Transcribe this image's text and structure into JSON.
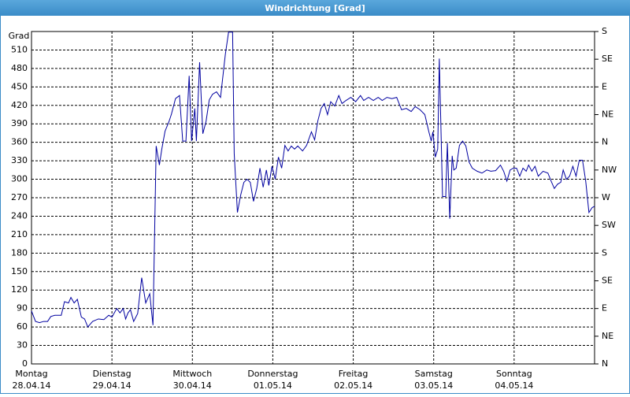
{
  "chart_data": {
    "type": "line",
    "title": "Windrichtung [Grad]",
    "y_label": "Grad",
    "color": "#0000a0",
    "grid": true,
    "xlim": [
      0,
      7
    ],
    "xticks": [
      {
        "value": 0,
        "label": "Montag",
        "date": "28.04.14"
      },
      {
        "value": 1,
        "label": "Dienstag",
        "date": "29.04.14"
      },
      {
        "value": 2,
        "label": "Mittwoch",
        "date": "30.04.14"
      },
      {
        "value": 3,
        "label": "Donnerstag",
        "date": "01.05.14"
      },
      {
        "value": 4,
        "label": "Freitag",
        "date": "02.05.14"
      },
      {
        "value": 5,
        "label": "Samstag",
        "date": "03.05.14"
      },
      {
        "value": 6,
        "label": "Sonntag",
        "date": "04.05.14"
      }
    ],
    "ylim": [
      0,
      540
    ],
    "yticks": [
      0,
      30,
      60,
      90,
      120,
      150,
      180,
      210,
      240,
      270,
      300,
      330,
      360,
      390,
      420,
      450,
      480,
      510
    ],
    "y2lim": [
      0,
      540
    ],
    "y2ticks": [
      {
        "value": 0,
        "label": "N"
      },
      {
        "value": 45,
        "label": "NE"
      },
      {
        "value": 90,
        "label": "E"
      },
      {
        "value": 135,
        "label": "SE"
      },
      {
        "value": 180,
        "label": "S"
      },
      {
        "value": 225,
        "label": "SW"
      },
      {
        "value": 270,
        "label": "W"
      },
      {
        "value": 315,
        "label": "NW"
      },
      {
        "value": 360,
        "label": "N"
      },
      {
        "value": 405,
        "label": "NE"
      },
      {
        "value": 450,
        "label": "E"
      },
      {
        "value": 495,
        "label": "SE"
      },
      {
        "value": 540,
        "label": "S"
      }
    ],
    "x": [
      0,
      0.05,
      0.1,
      0.15,
      0.2,
      0.24,
      0.29,
      0.37,
      0.41,
      0.46,
      0.49,
      0.53,
      0.57,
      0.62,
      0.66,
      0.7,
      0.76,
      0.83,
      0.9,
      0.96,
      1.0,
      1.06,
      1.1,
      1.14,
      1.17,
      1.2,
      1.23,
      1.27,
      1.32,
      1.37,
      1.42,
      1.47,
      1.51,
      1.55,
      1.59,
      1.62,
      1.66,
      1.71,
      1.74,
      1.79,
      1.84,
      1.88,
      1.92,
      1.96,
      1.99,
      2.03,
      2.05,
      2.09,
      2.13,
      2.17,
      2.21,
      2.25,
      2.3,
      2.35,
      2.41,
      2.45,
      2.5,
      2.52,
      2.56,
      2.6,
      2.64,
      2.68,
      2.72,
      2.76,
      2.8,
      2.84,
      2.88,
      2.92,
      2.95,
      2.99,
      3.03,
      3.07,
      3.11,
      3.15,
      3.19,
      3.23,
      3.27,
      3.31,
      3.37,
      3.42,
      3.48,
      3.52,
      3.56,
      3.6,
      3.64,
      3.68,
      3.72,
      3.77,
      3.82,
      3.86,
      3.91,
      3.97,
      4.03,
      4.09,
      4.13,
      4.19,
      4.25,
      4.31,
      4.36,
      4.42,
      4.48,
      4.54,
      4.6,
      4.66,
      4.72,
      4.77,
      4.83,
      4.89,
      4.94,
      4.97,
      4.99,
      5.02,
      5.05,
      5.07,
      5.11,
      5.15,
      5.17,
      5.2,
      5.23,
      5.25,
      5.28,
      5.32,
      5.36,
      5.4,
      5.44,
      5.48,
      5.54,
      5.6,
      5.66,
      5.71,
      5.77,
      5.83,
      5.87,
      5.91,
      5.95,
      5.99,
      6.03,
      6.07,
      6.11,
      6.15,
      6.18,
      6.22,
      6.26,
      6.3,
      6.36,
      6.42,
      6.46,
      6.5,
      6.54,
      6.58,
      6.61,
      6.65,
      6.69,
      6.73,
      6.77,
      6.81,
      6.85,
      6.89,
      6.93,
      6.97,
      7.0
    ],
    "values": [
      86,
      69,
      67,
      69,
      69,
      77,
      79,
      79,
      101,
      99,
      108,
      99,
      105,
      76,
      73,
      60,
      69,
      73,
      72,
      79,
      76,
      90,
      83,
      90,
      73,
      83,
      88,
      69,
      82,
      140,
      99,
      114,
      63,
      354,
      323,
      349,
      378,
      394,
      406,
      431,
      436,
      362,
      362,
      468,
      362,
      415,
      362,
      490,
      374,
      394,
      429,
      438,
      442,
      433,
      503,
      539,
      539,
      342,
      246,
      274,
      295,
      300,
      295,
      264,
      285,
      318,
      287,
      315,
      290,
      321,
      300,
      336,
      318,
      355,
      346,
      354,
      349,
      354,
      346,
      355,
      377,
      364,
      395,
      415,
      423,
      405,
      426,
      419,
      436,
      423,
      428,
      433,
      426,
      436,
      428,
      433,
      428,
      433,
      428,
      433,
      431,
      433,
      413,
      415,
      410,
      418,
      413,
      405,
      377,
      362,
      377,
      336,
      349,
      496,
      272,
      272,
      359,
      236,
      338,
      315,
      318,
      355,
      362,
      354,
      328,
      318,
      313,
      310,
      315,
      313,
      314,
      323,
      313,
      297,
      315,
      318,
      318,
      305,
      318,
      313,
      323,
      313,
      321,
      305,
      313,
      310,
      297,
      285,
      292,
      295,
      315,
      300,
      305,
      321,
      305,
      331,
      331,
      297,
      246,
      254,
      256
    ]
  }
}
